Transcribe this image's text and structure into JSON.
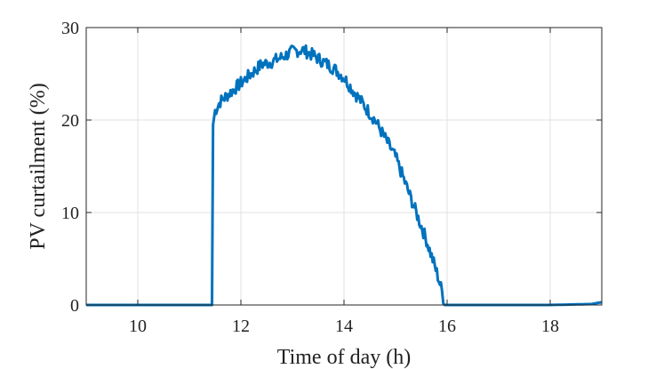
{
  "chart_data": {
    "type": "line",
    "xlabel": "Time of day (h)",
    "ylabel": "PV curtailment (%)",
    "xlim": [
      9,
      19
    ],
    "ylim": [
      0,
      30
    ],
    "xticks": [
      10,
      12,
      14,
      16,
      18
    ],
    "yticks": [
      0,
      10,
      20,
      30
    ],
    "xtick_labels": [
      "10",
      "12",
      "14",
      "16",
      "18"
    ],
    "ytick_labels": [
      "0",
      "10",
      "20",
      "30"
    ],
    "grid": true,
    "series": [
      {
        "color": "#0072BD",
        "x": [
          9.0,
          11.44,
          11.46,
          11.5,
          11.6,
          11.8,
          12.0,
          12.2,
          12.4,
          12.6,
          12.8,
          13.0,
          13.2,
          13.4,
          13.6,
          13.8,
          14.0,
          14.2,
          14.4,
          14.6,
          14.8,
          15.0,
          15.2,
          15.4,
          15.6,
          15.8,
          15.9,
          15.95,
          16.0,
          17.0,
          18.0,
          18.8,
          19.0
        ],
        "y": [
          0,
          0,
          19.5,
          21,
          22,
          23,
          24,
          25,
          26,
          26.3,
          26.8,
          27.4,
          27.6,
          27,
          26.3,
          25.6,
          24.6,
          23,
          21.5,
          20,
          18,
          16,
          13,
          10,
          7,
          3.5,
          1.5,
          0,
          0,
          0,
          0,
          0.1,
          0.3
        ]
      }
    ]
  }
}
